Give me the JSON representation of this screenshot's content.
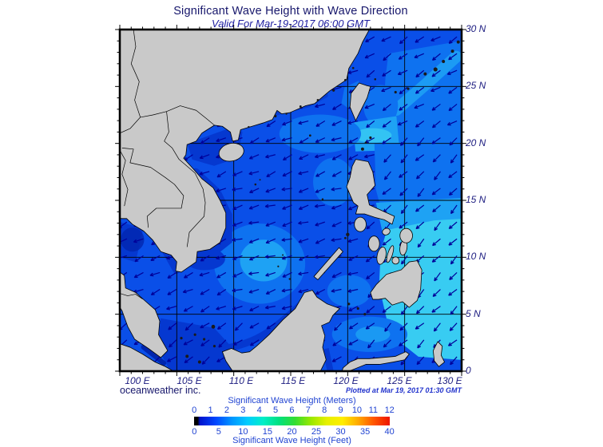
{
  "title": "Significant Wave Height with Wave Direction",
  "subtitle": "Valid For Mar-19-2017 06:00 GMT",
  "map": {
    "lat_labels": [
      "30 N",
      "25 N",
      "20 N",
      "15 N",
      "10 N",
      "5 N",
      "0"
    ],
    "lon_labels": [
      "100 E",
      "105 E",
      "110 E",
      "115 E",
      "120 E",
      "125 E",
      "130 E"
    ],
    "credit": "oceanweather inc.",
    "plotted_at": "Plotted at Mar 19, 2017 01:30 GMT",
    "arrow_color": "#000099",
    "land_color": "#c9c9c9",
    "ocean_colors": {
      "base": "#0a4fe8",
      "mid": "#0e72f0",
      "light": "#1ea2f4",
      "cyan": "#38ccf2",
      "dark": "#0538d0",
      "darkest": "#0126ae"
    }
  },
  "colorbar": {
    "meters_label": "Significant Wave Height (Meters)",
    "meters_ticks": [
      "0",
      "1",
      "2",
      "3",
      "4",
      "5",
      "6",
      "7",
      "8",
      "9",
      "10",
      "11",
      "12"
    ],
    "feet_label": "Significant Wave Height (Feet)",
    "feet_ticks": [
      "0",
      "5",
      "10",
      "15",
      "20",
      "25",
      "30",
      "35",
      "40"
    ],
    "gradient": [
      "#000000",
      "#0013cc",
      "#0046ff",
      "#0095ff",
      "#00ccff",
      "#00eec8",
      "#00e080",
      "#33dd33",
      "#99e800",
      "#e6f000",
      "#ffee00",
      "#ffaa00",
      "#ff5500",
      "#ee1500"
    ]
  }
}
